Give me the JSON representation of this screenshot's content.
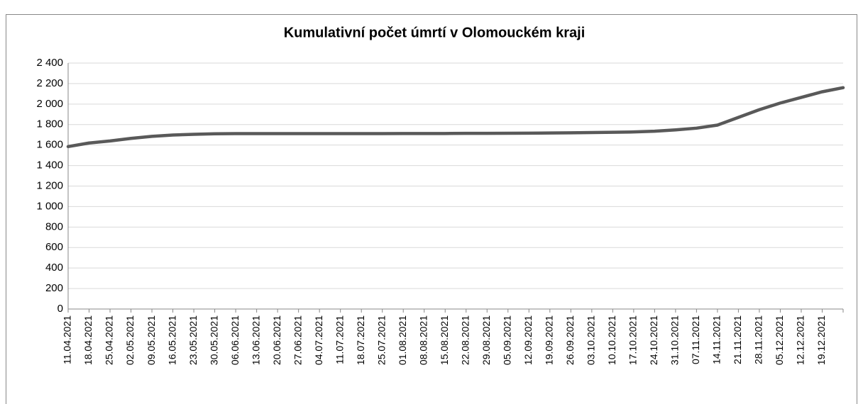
{
  "chart_data": {
    "type": "line",
    "title": "Kumulativní počet úmrtí v Olomouckém kraji",
    "categories": [
      "11.04.2021",
      "18.04.2021",
      "25.04.2021",
      "02.05.2021",
      "09.05.2021",
      "16.05.2021",
      "23.05.2021",
      "30.05.2021",
      "06.06.2021",
      "13.06.2021",
      "20.06.2021",
      "27.06.2021",
      "04.07.2021",
      "11.07.2021",
      "18.07.2021",
      "25.07.2021",
      "01.08.2021",
      "08.08.2021",
      "15.08.2021",
      "22.08.2021",
      "29.08.2021",
      "05.09.2021",
      "12.09.2021",
      "19.09.2021",
      "26.09.2021",
      "03.10.2021",
      "10.10.2021",
      "17.10.2021",
      "24.10.2021",
      "31.10.2021",
      "07.11.2021",
      "14.11.2021",
      "21.11.2021",
      "28.11.2021",
      "05.12.2021",
      "12.12.2021",
      "19.12.2021",
      null
    ],
    "series": [
      {
        "name": "Kumulativní počet úmrtí",
        "color": "#595959",
        "values": [
          1585,
          1620,
          1640,
          1665,
          1685,
          1698,
          1705,
          1710,
          1712,
          1712,
          1712,
          1712,
          1712,
          1712,
          1712,
          1712,
          1713,
          1713,
          1713,
          1714,
          1714,
          1715,
          1716,
          1718,
          1720,
          1722,
          1725,
          1728,
          1735,
          1748,
          1765,
          1795,
          1870,
          1945,
          2010,
          2065,
          2120,
          2160
        ]
      }
    ],
    "ylim": [
      0,
      2400
    ],
    "yticks": [
      0,
      200,
      400,
      600,
      800,
      {
        "value": 1000,
        "label": "1 000"
      },
      {
        "value": 1200,
        "label": "1 200"
      },
      {
        "value": 1400,
        "label": "1 400"
      },
      {
        "value": 1600,
        "label": "1 600"
      },
      {
        "value": 1800,
        "label": "1 800"
      },
      {
        "value": 2000,
        "label": "2 000"
      },
      {
        "value": 2200,
        "label": "2 200"
      },
      {
        "value": 2400,
        "label": "2 400"
      }
    ],
    "grid": true
  }
}
